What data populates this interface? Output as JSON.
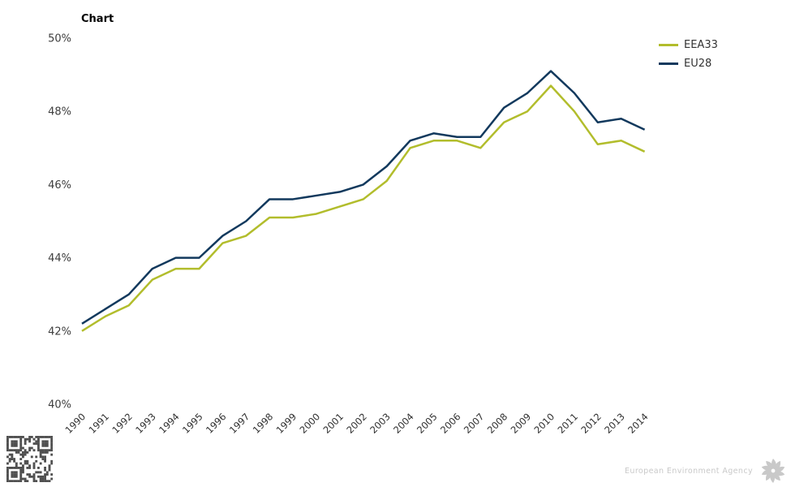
{
  "header": {
    "title": "Chart"
  },
  "chart_data": {
    "type": "line",
    "title": "Chart",
    "x": [
      1990,
      1991,
      1992,
      1993,
      1994,
      1995,
      1996,
      1997,
      1998,
      1999,
      2000,
      2001,
      2002,
      2003,
      2004,
      2005,
      2006,
      2007,
      2008,
      2009,
      2010,
      2011,
      2012,
      2013,
      2014
    ],
    "series": [
      {
        "name": "EEA33",
        "color": "#b2bd2c",
        "values": [
          42.0,
          42.4,
          42.7,
          43.4,
          43.7,
          43.7,
          44.4,
          44.6,
          45.1,
          45.1,
          45.2,
          45.4,
          45.6,
          46.1,
          47.0,
          47.2,
          47.2,
          47.0,
          47.7,
          48.0,
          48.7,
          48.0,
          47.1,
          47.2,
          46.9
        ]
      },
      {
        "name": "EU28",
        "color": "#12395d",
        "values": [
          42.2,
          42.6,
          43.0,
          43.7,
          44.0,
          44.0,
          44.6,
          45.0,
          45.6,
          45.6,
          45.7,
          45.8,
          46.0,
          46.5,
          47.2,
          47.4,
          47.3,
          47.3,
          48.1,
          48.5,
          49.1,
          48.5,
          47.7,
          47.8,
          47.5
        ]
      }
    ],
    "xlabel": "",
    "ylabel": "",
    "ylim": [
      40,
      50
    ],
    "yticks": [
      40,
      42,
      44,
      46,
      48,
      50
    ],
    "ytick_suffix": "%",
    "grid": false,
    "legend_position": "top-right"
  },
  "footer": {
    "agency": "European Environment Agency"
  },
  "colors": {
    "qr": "#4f4f4f",
    "logo": "#c9c9c9"
  }
}
